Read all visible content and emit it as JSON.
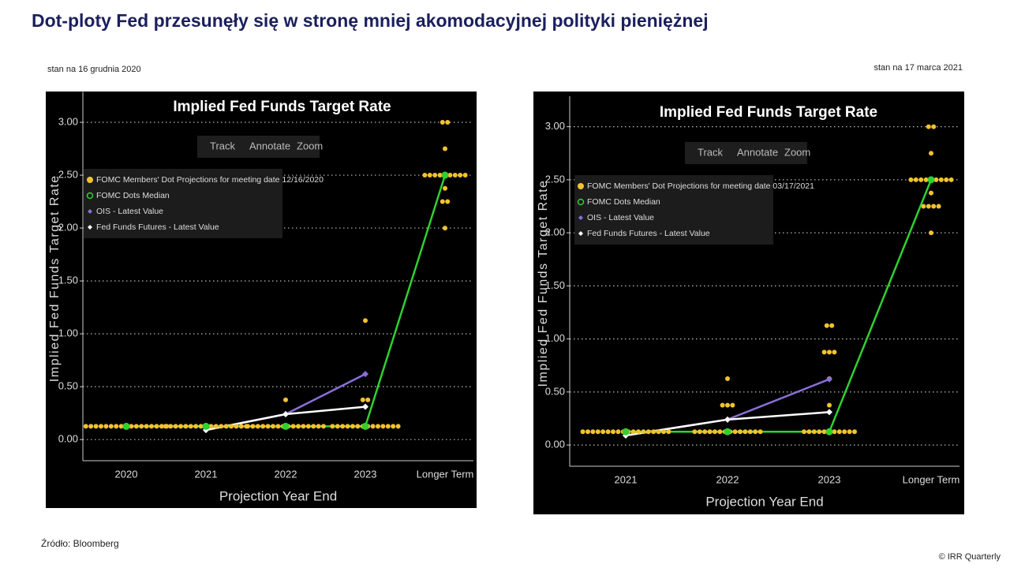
{
  "page": {
    "title": "Dot-ploty Fed przesunęły się w stronę mniej akomodacyjnej polityki pieniężnej",
    "source": "Źródło: Bloomberg",
    "credit": "© IRR Quarterly"
  },
  "chart_data": [
    {
      "type": "dot",
      "note": "stan na 16 grudnia 2020",
      "title": "Implied Fed Funds Target Rate",
      "toolbar": [
        "Track",
        "Annotate",
        "Zoom"
      ],
      "x_label": "Projection Year End",
      "y_label": "Implied Fed Funds Target Rate",
      "categories": [
        "2020",
        "2021",
        "2022",
        "2023",
        "Longer Term"
      ],
      "ylim": [
        -0.2,
        3.25
      ],
      "yticks": [
        {
          "value": 0,
          "label": "0.00"
        },
        {
          "value": 0.5,
          "label": "0.50"
        },
        {
          "value": 1,
          "label": "1.00"
        },
        {
          "value": 1.5,
          "label": "1.50"
        },
        {
          "value": 2,
          "label": "2.00"
        },
        {
          "value": 2.5,
          "label": "2.50"
        },
        {
          "value": 3,
          "label": "3.00"
        }
      ],
      "grid": true,
      "series": [
        {
          "name": "FOMC Members' Dot Projections for meeting date 12/16/2020",
          "color": "#f2c230",
          "values": [
            [
              0.125,
              0.125,
              0.125,
              0.125,
              0.125,
              0.125,
              0.125,
              0.125,
              0.125,
              0.125,
              0.125,
              0.125,
              0.125,
              0.125,
              0.125,
              0.125,
              0.125
            ],
            [
              0.125,
              0.125,
              0.125,
              0.125,
              0.125,
              0.125,
              0.125,
              0.125,
              0.125,
              0.125,
              0.125,
              0.125,
              0.125,
              0.125,
              0.125,
              0.125,
              0.125
            ],
            [
              0.125,
              0.125,
              0.125,
              0.125,
              0.125,
              0.125,
              0.125,
              0.125,
              0.125,
              0.125,
              0.125,
              0.125,
              0.125,
              0.125,
              0.125,
              0.125,
              0.375
            ],
            [
              0.125,
              0.125,
              0.125,
              0.125,
              0.125,
              0.125,
              0.125,
              0.125,
              0.125,
              0.125,
              0.125,
              0.125,
              0.125,
              0.125,
              0.375,
              0.375,
              1.125
            ],
            [
              2,
              2.25,
              2.25,
              2.375,
              2.5,
              2.5,
              2.5,
              2.5,
              2.5,
              2.5,
              2.5,
              2.5,
              2.5,
              2.75,
              3,
              3
            ]
          ]
        },
        {
          "name": "FOMC Dots Median",
          "color": "#2fd12f",
          "values": [
            0.125,
            0.125,
            0.125,
            0.125,
            2.5
          ]
        },
        {
          "name": "OIS - Latest Value",
          "color": "#8a6fd8",
          "values": [
            null,
            0.09,
            0.24,
            0.62,
            null
          ]
        },
        {
          "name": "Fed Funds Futures - Latest Value",
          "color": "#ffffff",
          "values": [
            null,
            0.09,
            0.24,
            0.31,
            null
          ]
        }
      ]
    },
    {
      "type": "dot",
      "note": "stan na 17 marca 2021",
      "title": "Implied Fed Funds Target Rate",
      "toolbar": [
        "Track",
        "Annotate",
        "Zoom"
      ],
      "x_label": "Projection Year End",
      "y_label": "Implied Fed Funds Target Rate",
      "categories": [
        "2021",
        "2022",
        "2023",
        "Longer Term"
      ],
      "ylim": [
        -0.2,
        3.25
      ],
      "yticks": [
        {
          "value": 0,
          "label": "0.00"
        },
        {
          "value": 0.5,
          "label": "0.50"
        },
        {
          "value": 1,
          "label": "1.00"
        },
        {
          "value": 1.5,
          "label": "1.50"
        },
        {
          "value": 2,
          "label": "2.00"
        },
        {
          "value": 2.5,
          "label": "2.50"
        },
        {
          "value": 3,
          "label": "3.00"
        }
      ],
      "grid": true,
      "series": [
        {
          "name": "FOMC Members' Dot Projections for meeting date 03/17/2021",
          "color": "#f2c230",
          "values": [
            [
              0.125,
              0.125,
              0.125,
              0.125,
              0.125,
              0.125,
              0.125,
              0.125,
              0.125,
              0.125,
              0.125,
              0.125,
              0.125,
              0.125,
              0.125,
              0.125,
              0.125,
              0.125
            ],
            [
              0.125,
              0.125,
              0.125,
              0.125,
              0.125,
              0.125,
              0.125,
              0.125,
              0.125,
              0.125,
              0.125,
              0.125,
              0.125,
              0.125,
              0.375,
              0.375,
              0.375,
              0.625
            ],
            [
              0.125,
              0.125,
              0.125,
              0.125,
              0.125,
              0.125,
              0.125,
              0.125,
              0.125,
              0.125,
              0.125,
              0.375,
              0.625,
              0.875,
              0.875,
              0.875,
              1.125,
              1.125
            ],
            [
              2,
              2.25,
              2.25,
              2.25,
              2.25,
              2.375,
              2.5,
              2.5,
              2.5,
              2.5,
              2.5,
              2.5,
              2.5,
              2.5,
              2.5,
              2.75,
              3,
              3
            ]
          ]
        },
        {
          "name": "FOMC Dots Median",
          "color": "#2fd12f",
          "values": [
            0.125,
            0.125,
            0.125,
            2.5
          ]
        },
        {
          "name": "OIS - Latest Value",
          "color": "#8a6fd8",
          "values": [
            0.09,
            0.24,
            0.62,
            null
          ]
        },
        {
          "name": "Fed Funds Futures - Latest Value",
          "color": "#ffffff",
          "values": [
            0.09,
            0.24,
            0.31,
            null
          ]
        }
      ]
    }
  ]
}
